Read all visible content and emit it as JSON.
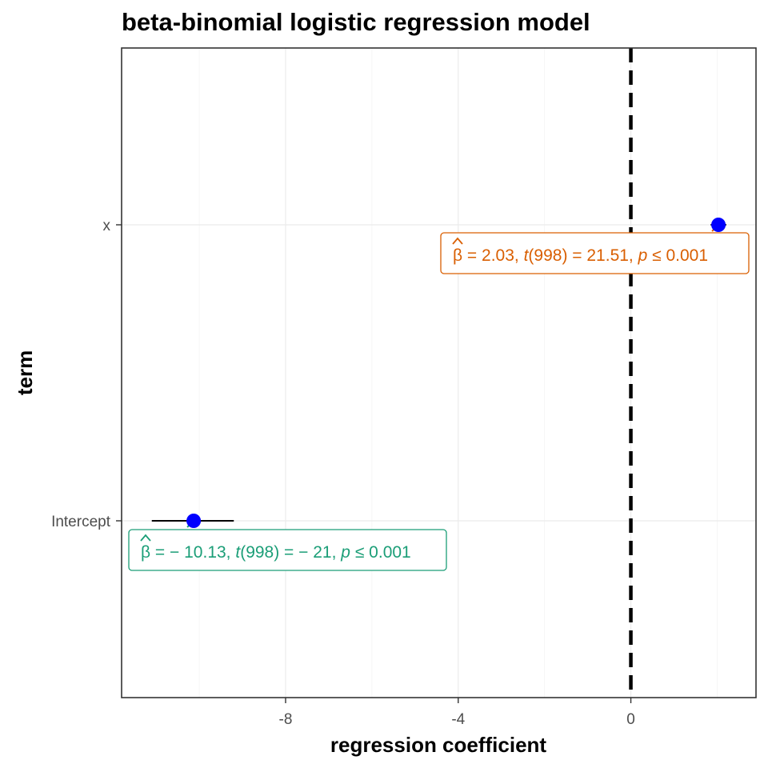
{
  "chart_data": {
    "type": "scatter",
    "title": "beta-binomial logistic regression model",
    "xlabel": "regression coefficient",
    "ylabel": "term",
    "xlim": [
      -11.8,
      2.9
    ],
    "x_ticks": [
      -8,
      -4,
      0
    ],
    "x_tick_labels": [
      "-8",
      "-4",
      "0"
    ],
    "categories": [
      "Intercept",
      "x"
    ],
    "grid": true,
    "reference_line": {
      "x": 0,
      "style": "dashed"
    },
    "point_color": "#0000ff",
    "points": [
      {
        "term": "Intercept",
        "estimate": -10.13,
        "conf_low": -11.1,
        "conf_high": -9.2,
        "label_color": "#1b9e77",
        "label": {
          "beta_symbol": "β",
          "estimate_text": "= − 10.13,",
          "t_symbol": "t",
          "t_text": "(998) = − 21,",
          "p_symbol": "p",
          "p_text": "≤ 0.001"
        }
      },
      {
        "term": "x",
        "estimate": 2.03,
        "conf_low": 1.85,
        "conf_high": 2.21,
        "label_color": "#d95f02",
        "label": {
          "beta_symbol": "β",
          "estimate_text": "= 2.03,",
          "t_symbol": "t",
          "t_text": "(998) = 21.51,",
          "p_symbol": "p",
          "p_text": "≤ 0.001"
        }
      }
    ]
  }
}
